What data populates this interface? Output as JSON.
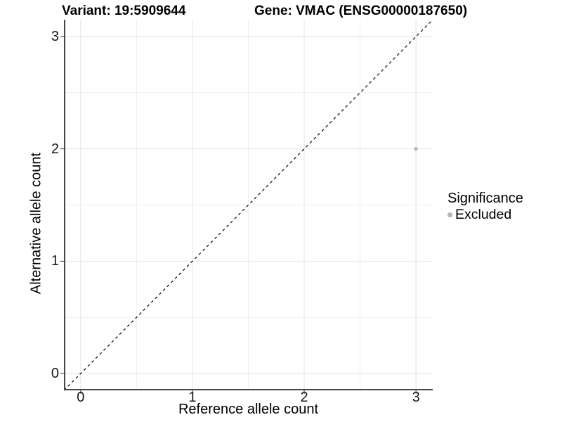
{
  "figure": {
    "title_variant": "Variant: 19:5909644",
    "title_gene": "Gene: VMAC (ENSG00000187650)"
  },
  "chart_data": {
    "type": "scatter",
    "title": "Variant: 19:5909644   Gene: VMAC (ENSG00000187650)",
    "xlabel": "Reference allele count",
    "ylabel": "Alternative allele count",
    "xlim": [
      -0.15,
      3.15
    ],
    "ylim": [
      -0.15,
      3.15
    ],
    "x_major_ticks": [
      0,
      1,
      2,
      3
    ],
    "y_major_ticks": [
      0,
      1,
      2,
      3
    ],
    "x_minor_ticks": [
      0.5,
      1.5,
      2.5
    ],
    "y_minor_ticks": [
      0.5,
      1.5,
      2.5
    ],
    "grid": true,
    "series": [
      {
        "name": "Excluded",
        "color": "#b5b5b5",
        "point_radius": 2.7,
        "points": [
          {
            "x": 3,
            "y": 2
          }
        ]
      }
    ],
    "reference_line": {
      "type": "identity",
      "style": "dashed",
      "color": "#000000"
    },
    "legend": {
      "title": "Significance",
      "position": "right",
      "entries": [
        {
          "label": "Excluded",
          "color": "#b5b5b5"
        }
      ]
    },
    "colors": {
      "background": "#ffffff",
      "grid_major": "#e2e2e2",
      "grid_minor": "#efefef",
      "axis_line": "#474747",
      "tick_mark": "#333333",
      "text": "#000000"
    }
  }
}
